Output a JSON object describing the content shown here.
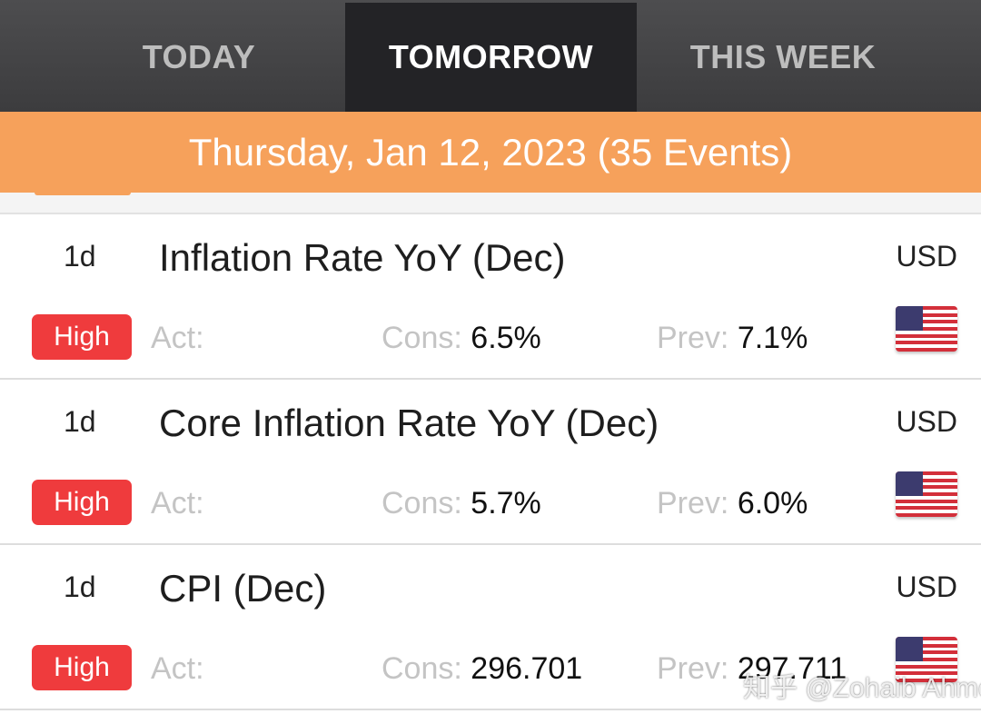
{
  "tabs": [
    {
      "label": "TODAY",
      "active": false
    },
    {
      "label": "TOMORROW",
      "active": true
    },
    {
      "label": "THIS WEEK",
      "active": false
    }
  ],
  "date_header": "Thursday, Jan 12, 2023 (35 Events)",
  "labels": {
    "act": "Act:",
    "cons": "Cons:",
    "prev": "Prev:"
  },
  "events": [
    {
      "time": "1d",
      "title": "Inflation Rate YoY (Dec)",
      "currency": "USD",
      "importance": "High",
      "actual": "",
      "consensus": "6.5%",
      "previous": "7.1%",
      "flag_icon": "us-flag-icon"
    },
    {
      "time": "1d",
      "title": "Core Inflation Rate YoY (Dec)",
      "currency": "USD",
      "importance": "High",
      "actual": "",
      "consensus": "5.7%",
      "previous": "6.0%",
      "flag_icon": "us-flag-icon"
    },
    {
      "time": "1d",
      "title": "CPI (Dec)",
      "currency": "USD",
      "importance": "High",
      "actual": "",
      "consensus": "296.701",
      "previous": "297.711",
      "flag_icon": "us-flag-icon"
    }
  ],
  "watermark": "知乎 @Zohaib Ahmed",
  "colors": {
    "tabbar": "#3c3c3e",
    "active_tab": "#232326",
    "header_orange": "#f6a15b",
    "high_badge": "#ef3b3d",
    "muted_label": "#c4c4c4"
  }
}
